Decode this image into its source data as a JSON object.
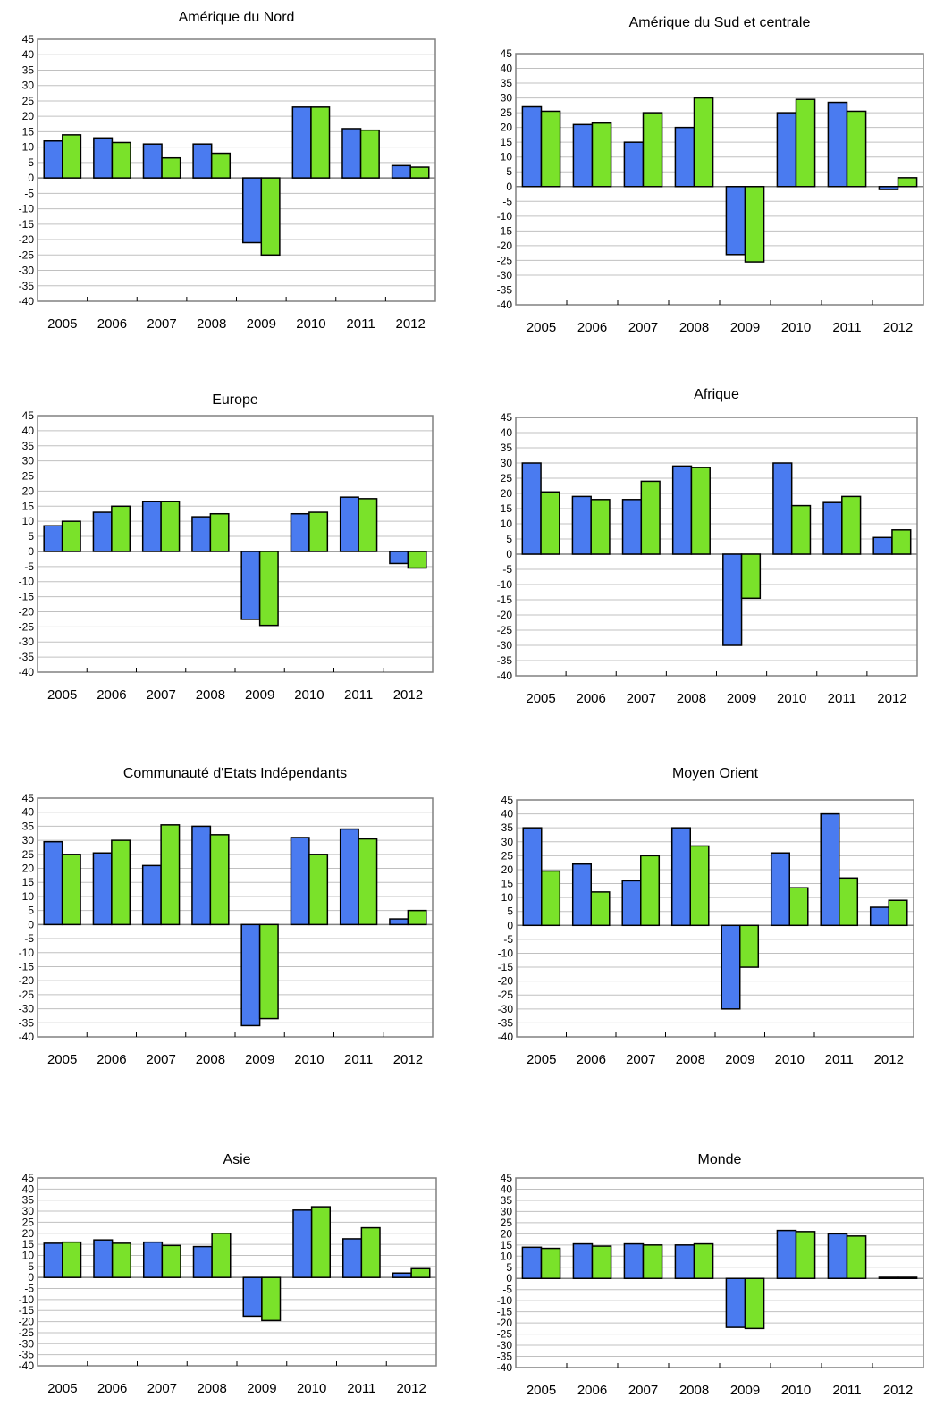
{
  "chart_data": [
    {
      "type": "bar",
      "title": "Amérique du Nord",
      "categories": [
        "2005",
        "2006",
        "2007",
        "2008",
        "2009",
        "2010",
        "2011",
        "2012"
      ],
      "series": [
        {
          "values": [
            12,
            13,
            11,
            11,
            -21,
            23,
            16,
            4
          ]
        },
        {
          "values": [
            14,
            11.5,
            6.5,
            8,
            -25,
            23,
            15.5,
            3.5
          ]
        }
      ],
      "ylim": [
        -40,
        45
      ],
      "yticks": [
        "45",
        "40",
        "35",
        "30",
        "25",
        "20",
        "15",
        "10",
        "5",
        "0",
        "-5",
        "-10",
        "-15",
        "-20",
        "-25",
        "-30",
        "-35",
        "-40"
      ],
      "grid": true
    },
    {
      "type": "bar",
      "title": "Amérique du Sud et centrale",
      "categories": [
        "2005",
        "2006",
        "2007",
        "2008",
        "2009",
        "2010",
        "2011",
        "2012"
      ],
      "series": [
        {
          "values": [
            27,
            21,
            15,
            20,
            -23,
            25,
            28.5,
            -1
          ]
        },
        {
          "values": [
            25.5,
            21.5,
            25,
            30,
            -25.5,
            29.5,
            25.5,
            3
          ]
        }
      ],
      "ylim": [
        -40,
        45
      ],
      "yticks": [
        "45",
        "40",
        "35",
        "30",
        "25",
        "20",
        "15",
        "10",
        "5",
        "0",
        "-5",
        "-10",
        "-15",
        "-20",
        "-25",
        "-30",
        "-35",
        "-40"
      ],
      "grid": true
    },
    {
      "type": "bar",
      "title": "Europe",
      "categories": [
        "2005",
        "2006",
        "2007",
        "2008",
        "2009",
        "2010",
        "2011",
        "2012"
      ],
      "series": [
        {
          "values": [
            8.5,
            13,
            16.5,
            11.5,
            -22.5,
            12.5,
            18,
            -4
          ]
        },
        {
          "values": [
            10,
            15,
            16.5,
            12.5,
            -24.5,
            13,
            17.5,
            -5.5
          ]
        }
      ],
      "ylim": [
        -40,
        45
      ],
      "yticks": [
        "45",
        "40",
        "35",
        "30",
        "25",
        "20",
        "15",
        "10",
        "5",
        "0",
        "-5",
        "-10",
        "-15",
        "-20",
        "-25",
        "-30",
        "-35",
        "-40"
      ],
      "grid": true
    },
    {
      "type": "bar",
      "title": "Afrique",
      "categories": [
        "2005",
        "2006",
        "2007",
        "2008",
        "2009",
        "2010",
        "2011",
        "2012"
      ],
      "series": [
        {
          "values": [
            30,
            19,
            18,
            29,
            -30,
            30,
            17,
            5.5
          ]
        },
        {
          "values": [
            20.5,
            18,
            24,
            28.5,
            -14.5,
            16,
            19,
            8
          ]
        }
      ],
      "ylim": [
        -40,
        45
      ],
      "yticks": [
        "45",
        "40",
        "35",
        "30",
        "25",
        "20",
        "15",
        "10",
        "5",
        "0",
        "-5",
        "-10",
        "-15",
        "-20",
        "-25",
        "-30",
        "-35",
        "-40"
      ],
      "grid": true
    },
    {
      "type": "bar",
      "title": "Communauté d'Etats Indépendants",
      "categories": [
        "2005",
        "2006",
        "2007",
        "2008",
        "2009",
        "2010",
        "2011",
        "2012"
      ],
      "series": [
        {
          "values": [
            29.5,
            25.5,
            21,
            35,
            -36,
            31,
            34,
            2
          ]
        },
        {
          "values": [
            25,
            30,
            35.5,
            32,
            -33.5,
            25,
            30.5,
            5
          ]
        }
      ],
      "ylim": [
        -40,
        45
      ],
      "yticks": [
        "45",
        "40",
        "35",
        "30",
        "25",
        "20",
        "15",
        "10",
        "5",
        "0",
        "-5",
        "-10",
        "-15",
        "-20",
        "-25",
        "-30",
        "-35",
        "-40"
      ],
      "grid": true
    },
    {
      "type": "bar",
      "title": "Moyen Orient",
      "categories": [
        "2005",
        "2006",
        "2007",
        "2008",
        "2009",
        "2010",
        "2011",
        "2012"
      ],
      "series": [
        {
          "values": [
            35,
            22,
            16,
            35,
            -30,
            26,
            40,
            6.5
          ]
        },
        {
          "values": [
            19.5,
            12,
            25,
            28.5,
            -15,
            13.5,
            17,
            9
          ]
        }
      ],
      "ylim": [
        -40,
        45
      ],
      "yticks": [
        "45",
        "40",
        "35",
        "30",
        "25",
        "20",
        "15",
        "10",
        "5",
        "0",
        "-5",
        "-10",
        "-15",
        "-20",
        "-25",
        "-30",
        "-35",
        "-40"
      ],
      "grid": true
    },
    {
      "type": "bar",
      "title": "Asie",
      "categories": [
        "2005",
        "2006",
        "2007",
        "2008",
        "2009",
        "2010",
        "2011",
        "2012"
      ],
      "series": [
        {
          "values": [
            15.5,
            17,
            16,
            14,
            -17.5,
            30.5,
            17.5,
            2
          ]
        },
        {
          "values": [
            16,
            15.5,
            14.5,
            20,
            -19.5,
            32,
            22.5,
            4
          ]
        }
      ],
      "ylim": [
        -40,
        45
      ],
      "yticks": [
        "45",
        "40",
        "35",
        "30",
        "25",
        "20",
        "15",
        "10",
        "5",
        "0",
        "-5",
        "-10",
        "-15",
        "-20",
        "-25",
        "-30",
        "-35",
        "-40"
      ],
      "grid": true
    },
    {
      "type": "bar",
      "title": "Monde",
      "categories": [
        "2005",
        "2006",
        "2007",
        "2008",
        "2009",
        "2010",
        "2011",
        "2012"
      ],
      "series": [
        {
          "values": [
            14,
            15.5,
            15.5,
            15,
            -22,
            21.5,
            20,
            0.5
          ]
        },
        {
          "values": [
            13.5,
            14.5,
            15,
            15.5,
            -22.5,
            21,
            19,
            0.5
          ]
        }
      ],
      "ylim": [
        -40,
        45
      ],
      "yticks": [
        "45",
        "40",
        "35",
        "30",
        "25",
        "20",
        "15",
        "10",
        "5",
        "0",
        "-5",
        "-10",
        "-15",
        "-20",
        "-25",
        "-30",
        "-35",
        "-40"
      ],
      "grid": true
    }
  ],
  "colors": {
    "series": [
      "#4a7bf0",
      "#7ae22a"
    ],
    "grid": "#c0c0c0",
    "axis": "#808080",
    "bar_stroke": "#000000"
  }
}
